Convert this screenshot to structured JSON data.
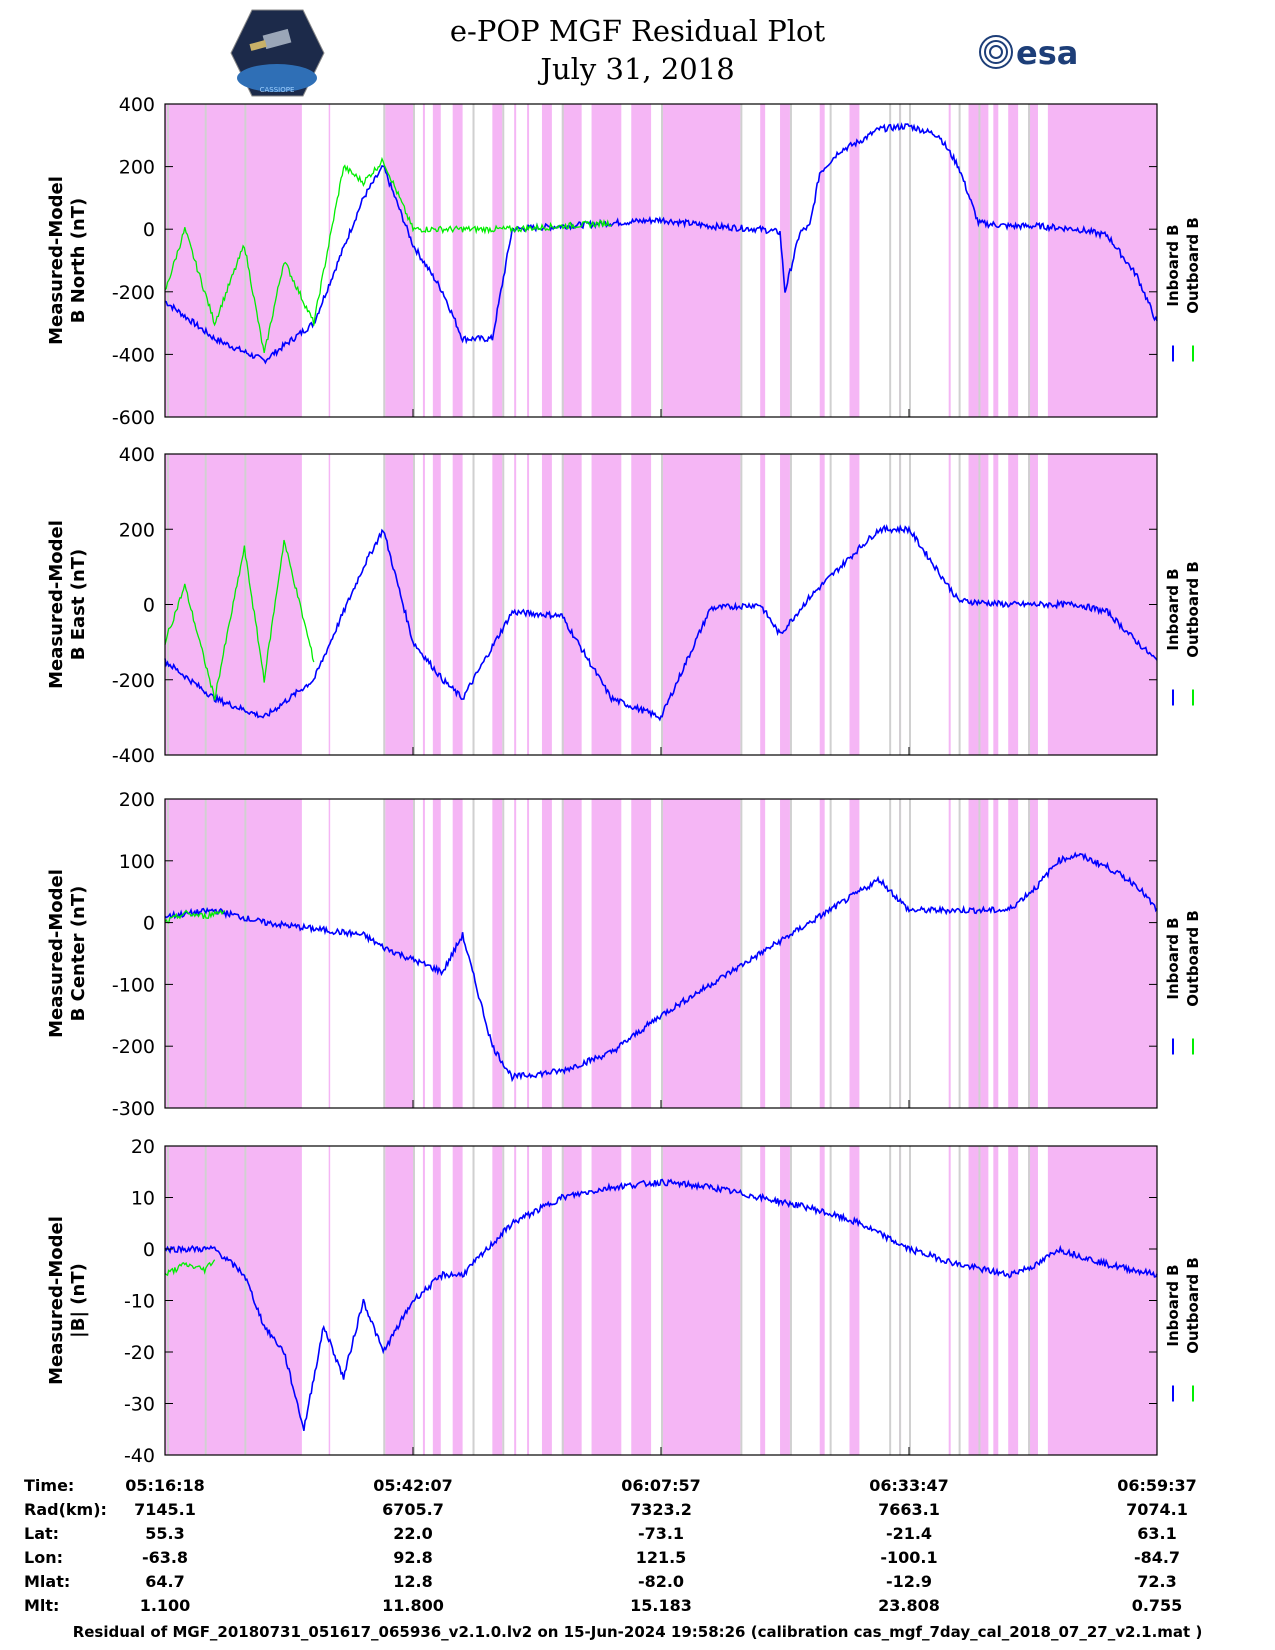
{
  "title": "e-POP MGF Residual Plot",
  "date": "July 31, 2018",
  "logos": {
    "left": "CASSIOPE",
    "right": "esa"
  },
  "colors": {
    "inboard": "#0000ff",
    "outboard": "#00ee00",
    "shading": "#f5b6f5",
    "grey_band": "#d0d0d0"
  },
  "chart_data": [
    {
      "type": "line",
      "ylabel1": "Measured-Model",
      "ylabel2": "B North (nT)",
      "ylim": [
        -600,
        400
      ],
      "yticks": [
        -600,
        -400,
        -200,
        0,
        200,
        400
      ],
      "legend": [
        "Inboard B",
        "Outboard B"
      ],
      "series": [
        {
          "name": "Inboard B",
          "x": [
            0,
            5,
            10,
            15,
            20,
            22,
            25,
            28,
            30,
            33,
            35,
            45,
            50,
            55,
            60,
            62,
            62.5,
            64,
            65,
            66,
            68,
            70,
            72,
            75,
            78,
            80,
            82,
            85,
            88,
            90,
            92,
            95,
            98,
            100
          ],
          "values": [
            -230,
            -350,
            -420,
            -300,
            100,
            200,
            -50,
            -200,
            -350,
            -350,
            0,
            20,
            30,
            10,
            0,
            -10,
            -200,
            -10,
            10,
            180,
            250,
            280,
            320,
            330,
            300,
            200,
            20,
            10,
            10,
            5,
            0,
            -20,
            -150,
            -300
          ]
        },
        {
          "name": "Outboard B",
          "x": [
            0,
            2,
            5,
            8,
            10,
            12,
            15,
            18,
            20,
            22,
            25,
            30,
            35,
            45
          ],
          "values": [
            -200,
            0,
            -300,
            -50,
            -400,
            -100,
            -300,
            200,
            150,
            220,
            0,
            0,
            0,
            20
          ]
        }
      ]
    },
    {
      "type": "line",
      "ylabel1": "Measured-Model",
      "ylabel2": "B East (nT)",
      "ylim": [
        -400,
        400
      ],
      "yticks": [
        -400,
        -200,
        0,
        200
      ],
      "legend": [
        "Inboard B",
        "Outboard B"
      ],
      "series": [
        {
          "name": "Inboard B",
          "x": [
            0,
            5,
            10,
            15,
            20,
            22,
            25,
            28,
            30,
            35,
            40,
            45,
            50,
            55,
            60,
            62,
            65,
            70,
            72,
            75,
            80,
            85,
            88,
            90,
            92,
            95,
            98,
            100
          ],
          "values": [
            -150,
            -250,
            -300,
            -200,
            100,
            200,
            -100,
            -200,
            -250,
            -20,
            -30,
            -250,
            -300,
            -10,
            0,
            -80,
            20,
            150,
            200,
            200,
            10,
            0,
            0,
            0,
            0,
            -20,
            -100,
            -150
          ]
        },
        {
          "name": "Outboard B",
          "x": [
            0,
            2,
            5,
            8,
            10,
            12,
            15
          ],
          "values": [
            -100,
            50,
            -250,
            150,
            -200,
            170,
            -150
          ]
        }
      ]
    },
    {
      "type": "line",
      "ylabel1": "Measured-Model",
      "ylabel2": "B Center (nT)",
      "ylim": [
        -300,
        200
      ],
      "yticks": [
        -300,
        -200,
        -100,
        0,
        100,
        200
      ],
      "legend": [
        "Inboard B",
        "Outboard B"
      ],
      "series": [
        {
          "name": "Inboard B",
          "x": [
            0,
            5,
            10,
            15,
            20,
            22,
            25,
            28,
            30,
            33,
            35,
            40,
            45,
            50,
            55,
            60,
            65,
            70,
            72,
            75,
            80,
            85,
            88,
            90,
            92,
            95,
            98,
            100
          ],
          "values": [
            10,
            20,
            0,
            -10,
            -20,
            -40,
            -60,
            -80,
            -20,
            -200,
            -250,
            -240,
            -210,
            -150,
            -100,
            -50,
            0,
            50,
            70,
            20,
            20,
            20,
            60,
            100,
            110,
            90,
            60,
            20
          ]
        },
        {
          "name": "Outboard B",
          "x": [
            0,
            2,
            4,
            6
          ],
          "values": [
            0,
            15,
            10,
            20
          ]
        }
      ]
    },
    {
      "type": "line",
      "ylabel1": "Measured-Model",
      "ylabel2": "|B| (nT)",
      "ylim": [
        -40,
        20
      ],
      "yticks": [
        -40,
        -30,
        -20,
        -10,
        0,
        10,
        20
      ],
      "legend": [
        "Inboard B",
        "Outboard B"
      ],
      "series": [
        {
          "name": "Inboard B",
          "x": [
            0,
            5,
            8,
            10,
            12,
            14,
            16,
            18,
            20,
            22,
            25,
            28,
            30,
            35,
            40,
            45,
            50,
            55,
            60,
            65,
            70,
            75,
            80,
            85,
            88,
            90,
            95,
            100
          ],
          "values": [
            0,
            0,
            -5,
            -15,
            -20,
            -35,
            -15,
            -25,
            -10,
            -20,
            -10,
            -5,
            -5,
            5,
            10,
            12,
            13,
            12,
            10,
            8,
            5,
            0,
            -3,
            -5,
            -3,
            0,
            -3,
            -5
          ]
        },
        {
          "name": "Outboard B",
          "x": [
            0,
            2,
            4,
            5
          ],
          "values": [
            -5,
            -3,
            -4,
            -2
          ]
        }
      ]
    }
  ],
  "ephemeris": {
    "labels": [
      "Time:",
      "Rad(km):",
      "Lat:",
      "Lon:",
      "Mlat:",
      "Mlt:"
    ],
    "columns": [
      [
        "05:16:18",
        "7145.1",
        "55.3",
        "-63.8",
        "64.7",
        "1.100"
      ],
      [
        "05:42:07",
        "6705.7",
        "22.0",
        "92.8",
        "12.8",
        "11.800"
      ],
      [
        "06:07:57",
        "7323.2",
        "-73.1",
        "121.5",
        "-82.0",
        "15.183"
      ],
      [
        "06:33:47",
        "7663.1",
        "-21.4",
        "-100.1",
        "-12.9",
        "23.808"
      ],
      [
        "06:59:37",
        "7074.1",
        "63.1",
        "-84.7",
        "72.3",
        "0.755"
      ]
    ]
  },
  "footer": "Residual of MGF_20180731_051617_065936_v2.1.0.lv2 on 15-Jun-2024 19:58:26 (calibration cas_mgf_7day_cal_2018_07_27_v2.1.mat )"
}
